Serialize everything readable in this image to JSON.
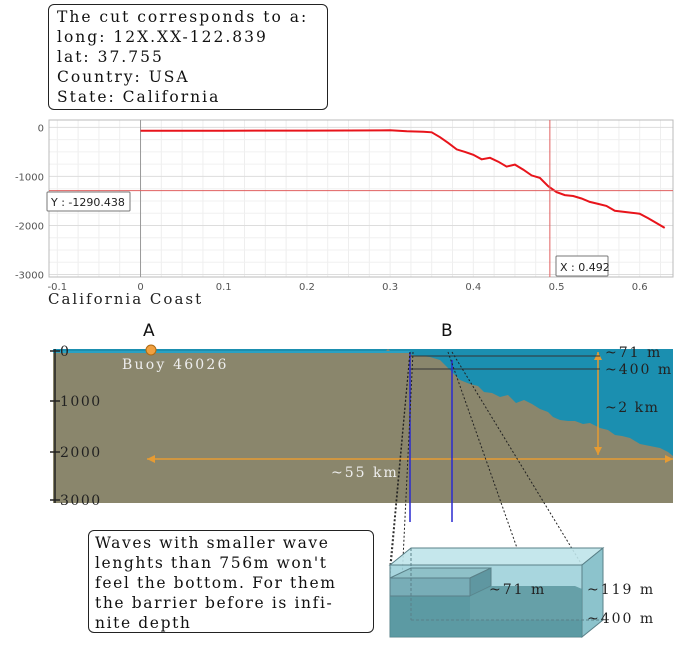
{
  "info_box": {
    "lines": [
      "The cut corresponds to a:",
      "long: 12X.XX-122.839",
      "lat: 37.755",
      "Country: USA",
      "State: California"
    ]
  },
  "profile_chart": {
    "y_ticks": [
      "0",
      "-1000",
      "-2000",
      "-3000"
    ],
    "x_ticks": [
      "-0.1",
      "0",
      "0.1",
      "0.2",
      "0.3",
      "0.4",
      "0.5",
      "0.6"
    ],
    "cursor_y_label": "Y : -1290.438",
    "cursor_x_label": "X : 0.492",
    "line_color": "#e8141b",
    "cursor_color": "#e06060"
  },
  "chart_data": {
    "type": "line",
    "title": "",
    "xlabel": "",
    "ylabel": "",
    "xlim": [
      -0.11,
      0.64
    ],
    "ylim": [
      -3050,
      150
    ],
    "grid": true,
    "series": [
      {
        "x": [
          0.0,
          0.05,
          0.1,
          0.15,
          0.2,
          0.25,
          0.3,
          0.32,
          0.34,
          0.35,
          0.36,
          0.37,
          0.38,
          0.39,
          0.4,
          0.41,
          0.42,
          0.43,
          0.44,
          0.45,
          0.46,
          0.47,
          0.48,
          0.49,
          0.5,
          0.51,
          0.52,
          0.53,
          0.54,
          0.55,
          0.56,
          0.57,
          0.58,
          0.59,
          0.6,
          0.61,
          0.62,
          0.63
        ],
        "y": [
          -71,
          -70,
          -68,
          -66,
          -66,
          -65,
          -60,
          -80,
          -90,
          -100,
          -200,
          -320,
          -450,
          -500,
          -560,
          -650,
          -620,
          -700,
          -800,
          -760,
          -860,
          -980,
          -1030,
          -1200,
          -1320,
          -1380,
          -1400,
          -1450,
          -1520,
          -1560,
          -1600,
          -1700,
          -1720,
          -1740,
          -1760,
          -1850,
          -1950,
          -2050
        ]
      }
    ],
    "cursor": {
      "x": 0.492,
      "y": -1290.438
    }
  },
  "section_title": "California Coast",
  "labels": {
    "a": "A",
    "b": "B",
    "buoy": "Buoy 46026",
    "depth_ticks": [
      "0",
      "1000",
      "2000",
      "3000"
    ],
    "dim_71": "~71 m",
    "dim_400": "~400 m",
    "dim_2km": "~2 km",
    "dim_55": "~55 km",
    "box_71": "~71 m",
    "box_119": "~119 m",
    "box_400": "~400 m"
  },
  "colors": {
    "land": "#8a866c",
    "sea": "#1b8fb0",
    "dim_line": "#e69b33",
    "buoy": "#f0a040",
    "cut_line": "#2a2ad0",
    "box_fill": "#9ed2da"
  },
  "note": {
    "lines": [
      "Waves with smaller wave",
      "lenghts than 756m won't",
      "feel the bottom. For them",
      "the barrier before is infi-",
      "nite depth"
    ]
  }
}
